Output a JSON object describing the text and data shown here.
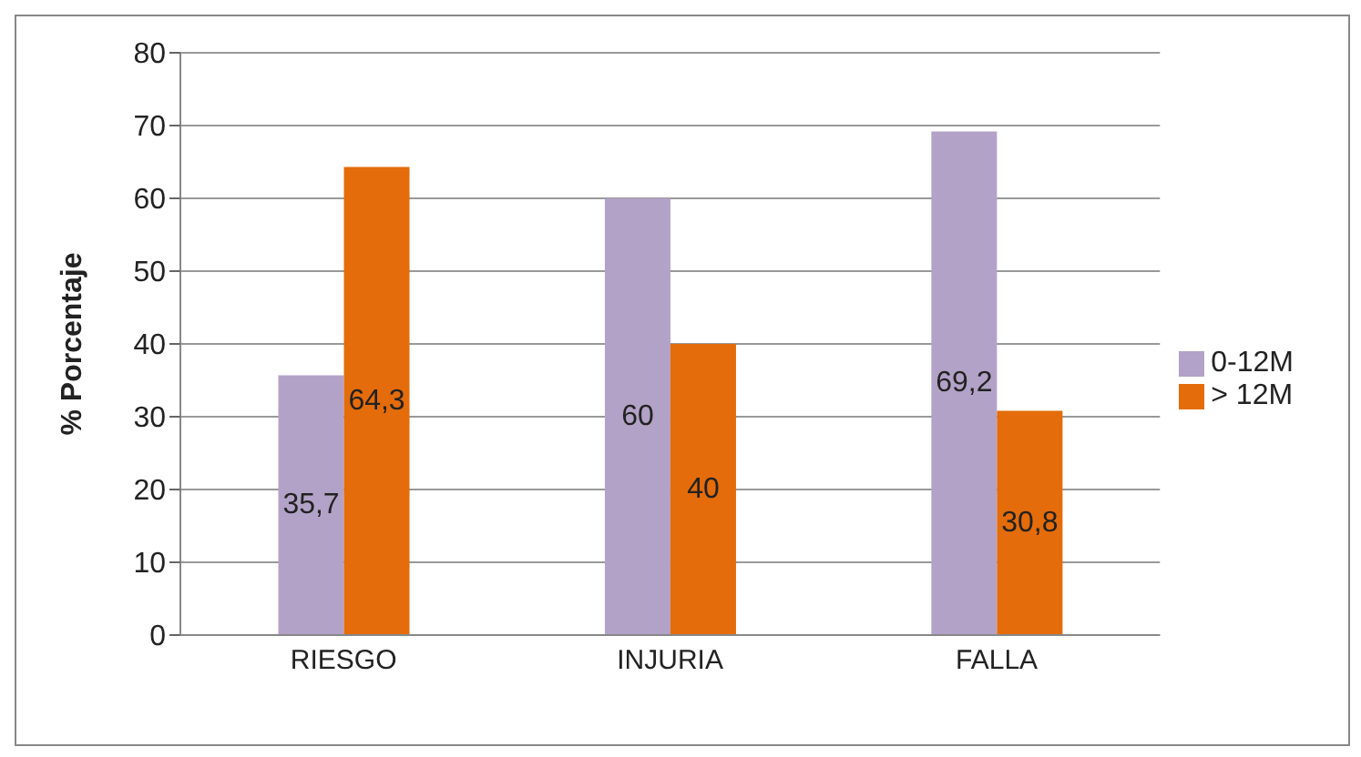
{
  "chart_data": {
    "type": "bar",
    "categories": [
      "RIESGO",
      "INJURIA",
      "FALLA"
    ],
    "series": [
      {
        "name": "0-12M",
        "color": "#b3a2c7",
        "values": [
          35.7,
          60,
          69.2
        ],
        "value_labels": [
          "35,7",
          "60",
          "69,2"
        ]
      },
      {
        "name": "> 12M",
        "color": "#e46c0a",
        "values": [
          64.3,
          40,
          30.8
        ],
        "value_labels": [
          "64,3",
          "40",
          "30,8"
        ]
      }
    ],
    "ylabel": "% Porcentaje",
    "ylim": [
      0,
      80
    ],
    "yticks": [
      0,
      10,
      20,
      30,
      40,
      50,
      60,
      70,
      80
    ],
    "grid": "y",
    "legend": "right"
  }
}
